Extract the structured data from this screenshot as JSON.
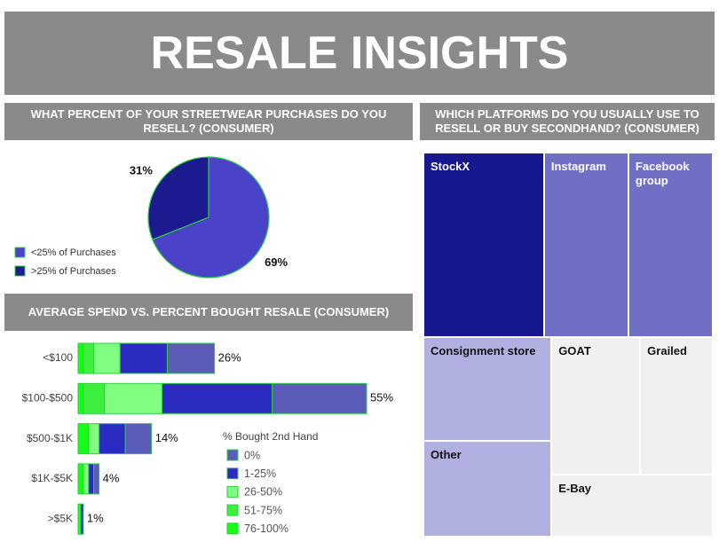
{
  "title": "RESALE INSIGHTS",
  "chart_data": [
    {
      "type": "pie",
      "title": "WHAT PERCENT OF YOUR STREETWEAR PURCHASES DO YOU RESELL? (CONSUMER)",
      "categories": [
        "<25% of Purchases",
        ">25% of Purchases"
      ],
      "values": [
        69,
        31
      ],
      "value_labels": [
        "69%",
        "31%"
      ],
      "colors": [
        "#4a43c9",
        "#1b1b8f"
      ],
      "legend": "left"
    },
    {
      "type": "bar",
      "orientation": "horizontal",
      "stacked": true,
      "title": "AVERAGE SPEND VS. PERCENT BOUGHT RESALE (CONSUMER)",
      "categories": [
        "<$100",
        "$100-$500",
        "$500-$1K",
        "$1K-$5K",
        ">$5K"
      ],
      "legend_title": "% Bought 2nd Hand",
      "series": [
        {
          "name": "0%",
          "color": "#5b5bb8",
          "values": [
            9,
            18,
            5,
            1,
            0
          ]
        },
        {
          "name": "1-25%",
          "color": "#2b2bc2",
          "values": [
            9,
            21,
            5,
            1,
            0.5
          ]
        },
        {
          "name": "26-50%",
          "color": "#80ff80",
          "values": [
            5,
            11,
            2,
            1,
            0
          ]
        },
        {
          "name": "51-75%",
          "color": "#3ef03e",
          "values": [
            2,
            4,
            0,
            0,
            0
          ]
        },
        {
          "name": "76-100%",
          "color": "#14ff14",
          "values": [
            1,
            1,
            2,
            1,
            0.5
          ]
        }
      ],
      "totals": [
        26,
        55,
        14,
        4,
        1
      ],
      "total_labels": [
        "26%",
        "55%",
        "14%",
        "4%",
        "1%"
      ]
    },
    {
      "type": "treemap",
      "title": "WHICH PLATFORMS DO YOU USUALLY USE TO RESELL OR BUY SECONDHAND? (CONSUMER)",
      "categories": [
        "StockX",
        "Instagram",
        "Facebook group",
        "Consignment store",
        "Other",
        "GOAT",
        "Grailed",
        "E-Bay"
      ],
      "values": [
        20,
        14,
        14,
        12,
        11,
        11,
        9,
        9
      ],
      "colors": [
        "#17178f",
        "#6f6fc6",
        "#6f6fc6",
        "#b0b0e1",
        "#b0b0e1",
        "#f0f0f0",
        "#f0f0f0",
        "#f0f0f0"
      ]
    }
  ]
}
